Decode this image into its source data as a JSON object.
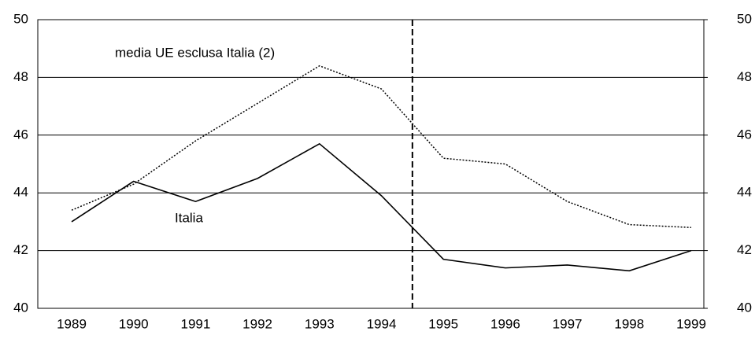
{
  "chart_data": {
    "type": "line",
    "categories": [
      "1989",
      "1990",
      "1991",
      "1992",
      "1993",
      "1994",
      "1995",
      "1996",
      "1997",
      "1998",
      "1999"
    ],
    "series": [
      {
        "name": "Italia",
        "color": "#000000",
        "style": "solid",
        "values": [
          43.0,
          44.4,
          43.7,
          44.5,
          45.7,
          43.9,
          41.7,
          41.4,
          41.5,
          41.3,
          42.0
        ]
      },
      {
        "name": "media UE esclusa Italia (2)",
        "color": "#000000",
        "style": "dotted",
        "values": [
          43.4,
          44.3,
          45.8,
          47.1,
          48.4,
          47.6,
          45.2,
          45.0,
          43.7,
          42.9,
          42.8
        ]
      }
    ],
    "ylim": [
      40,
      50
    ],
    "yticks": [
      40,
      42,
      44,
      46,
      48,
      50
    ],
    "y2lim": [
      40,
      50
    ],
    "y2ticks": [
      40,
      42,
      44,
      46,
      48,
      50
    ],
    "grid": true
  }
}
